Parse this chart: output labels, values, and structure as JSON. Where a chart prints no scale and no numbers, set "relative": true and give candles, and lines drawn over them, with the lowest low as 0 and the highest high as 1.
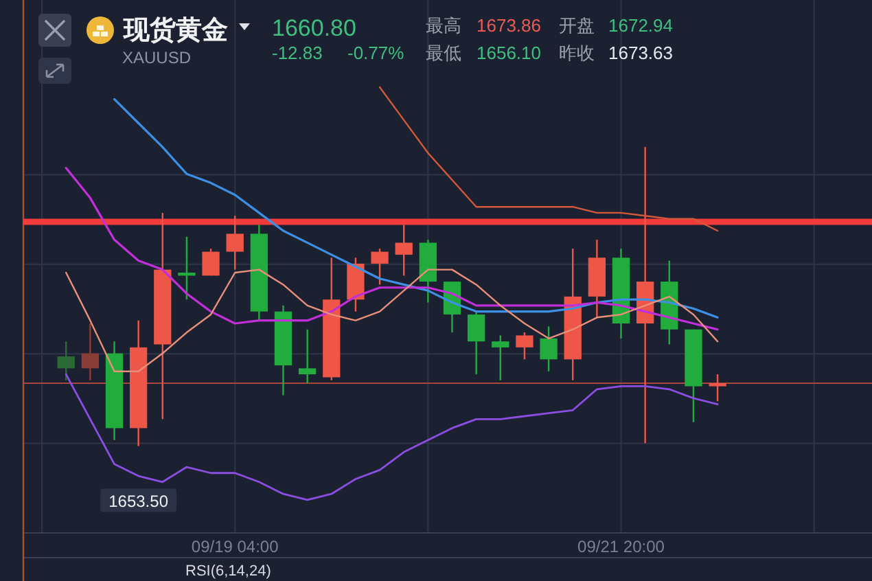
{
  "chart_data": {
    "type": "candlestick",
    "title": "现货黄金",
    "subtitle": "XAUUSD",
    "relative": true,
    "grid": true,
    "categories": [
      null,
      null,
      null,
      null,
      null,
      null,
      null,
      "09/19 04:00",
      null,
      null,
      null,
      null,
      null,
      null,
      null,
      null,
      null,
      null,
      null,
      null,
      null,
      null,
      null,
      "09/21 20:00",
      null,
      null,
      null,
      null
    ],
    "ohlc": [
      [
        0.3,
        0.35,
        0.22,
        0.26
      ],
      [
        0.26,
        0.41,
        0.22,
        0.31
      ],
      [
        0.31,
        0.35,
        0.02,
        0.06
      ],
      [
        0.06,
        0.42,
        0,
        0.33
      ],
      [
        0.34,
        0.78,
        0.09,
        0.59
      ],
      [
        0.58,
        0.7,
        0.49,
        0.57
      ],
      [
        0.57,
        0.66,
        0.57,
        0.65
      ],
      [
        0.65,
        0.77,
        0.59,
        0.71
      ],
      [
        0.71,
        0.74,
        0.42,
        0.45
      ],
      [
        0.45,
        0.47,
        0.17,
        0.27
      ],
      [
        0.26,
        0.39,
        0.21,
        0.24
      ],
      [
        0.23,
        0.63,
        0.22,
        0.49
      ],
      [
        0.49,
        0.63,
        0.45,
        0.61
      ],
      [
        0.61,
        0.66,
        0.54,
        0.65
      ],
      [
        0.64,
        0.74,
        0.57,
        0.68
      ],
      [
        0.68,
        0.69,
        0.48,
        0.55
      ],
      [
        0.55,
        0.55,
        0.38,
        0.44
      ],
      [
        0.44,
        0.45,
        0.24,
        0.35
      ],
      [
        0.35,
        0.37,
        0.22,
        0.33
      ],
      [
        0.33,
        0.38,
        0.29,
        0.37
      ],
      [
        0.36,
        0.4,
        0.25,
        0.29
      ],
      [
        0.29,
        0.66,
        0.22,
        0.5
      ],
      [
        0.5,
        0.69,
        0.43,
        0.63
      ],
      [
        0.63,
        0.66,
        0.36,
        0.41
      ],
      [
        0.41,
        1,
        0.01,
        0.55
      ],
      [
        0.55,
        0.62,
        0.34,
        0.39
      ],
      [
        0.39,
        0.39,
        0.08,
        0.2
      ],
      [
        0.2,
        0.24,
        0.15,
        0.21
      ]
    ],
    "colors": [
      "#2b6a37",
      "#8b3c36",
      "#22ac3e",
      "#ee5747",
      "#ee5747",
      "#22ac3e",
      "#ee5747",
      "#ee5747",
      "#22ac3e",
      "#22ac3e",
      "#22ac3e",
      "#ee5747",
      "#ee5747",
      "#ee5747",
      "#ee5747",
      "#22ac3e",
      "#22ac3e",
      "#22ac3e",
      "#22ac3e",
      "#ee5747",
      "#22ac3e",
      "#ee5747",
      "#ee5747",
      "#22ac3e",
      "#ee5747",
      "#22ac3e",
      "#22ac3e",
      "#ee5747"
    ],
    "series": [
      {
        "type": "line",
        "color": "#3d8fe6",
        "values": [
          null,
          null,
          1.16,
          1.08,
          1.0,
          0.91,
          0.88,
          0.84,
          0.78,
          0.72,
          0.68,
          0.64,
          0.6,
          0.56,
          0.54,
          0.52,
          0.48,
          0.45,
          0.45,
          0.45,
          0.45,
          0.46,
          0.48,
          0.49,
          0.49,
          0.48,
          0.46,
          0.43
        ]
      },
      {
        "type": "line",
        "color": "#c22fd8",
        "values": [
          0.93,
          0.83,
          0.69,
          0.62,
          0.59,
          0.51,
          0.45,
          0.41,
          0.42,
          0.42,
          0.42,
          0.45,
          0.5,
          0.53,
          0.53,
          0.53,
          0.51,
          0.47,
          0.47,
          0.47,
          0.47,
          0.47,
          0.48,
          0.47,
          0.45,
          0.43,
          0.41,
          0.39
        ]
      },
      {
        "type": "line",
        "color": "#e8907a",
        "values": [
          0.58,
          0.42,
          0.25,
          0.25,
          0.31,
          0.38,
          0.44,
          0.58,
          0.59,
          0.54,
          0.47,
          0.44,
          0.42,
          0.45,
          0.52,
          0.59,
          0.59,
          0.54,
          0.47,
          0.41,
          0.36,
          0.39,
          0.43,
          0.44,
          0.47,
          0.5,
          0.44,
          0.35
        ]
      },
      {
        "type": "line",
        "color": "#8a4fe2",
        "values": [
          0.24,
          0.09,
          -0.06,
          -0.1,
          -0.12,
          -0.07,
          -0.09,
          -0.09,
          -0.12,
          -0.16,
          -0.18,
          -0.16,
          -0.11,
          -0.08,
          -0.02,
          0.02,
          0.06,
          0.09,
          0.09,
          0.1,
          0.11,
          0.12,
          0.19,
          0.2,
          0.2,
          0.19,
          0.16,
          0.14
        ]
      },
      {
        "type": "line",
        "color": "#d5583a",
        "values": [
          null,
          null,
          null,
          null,
          null,
          null,
          null,
          null,
          null,
          null,
          null,
          null,
          null,
          1.2,
          1.09,
          0.98,
          0.89,
          0.8,
          0.8,
          0.8,
          0.8,
          0.8,
          0.78,
          0.78,
          0.77,
          0.76,
          0.76,
          0.72
        ]
      }
    ],
    "ref_lines": [
      {
        "axis": "y",
        "value": 0.75,
        "color": "#f23b3b"
      },
      {
        "axis": "y",
        "value": 0.21,
        "color": "#a8453f"
      }
    ],
    "annotations": [
      "1660.80",
      "-12.83",
      "-0.77%",
      "最高",
      "1673.86",
      "开盘",
      "1672.94",
      "最低",
      "1656.10",
      "昨收",
      "1673.63",
      {
        "text": "1653.50",
        "y": 0
      },
      "RSI(6,14,24)"
    ]
  }
}
